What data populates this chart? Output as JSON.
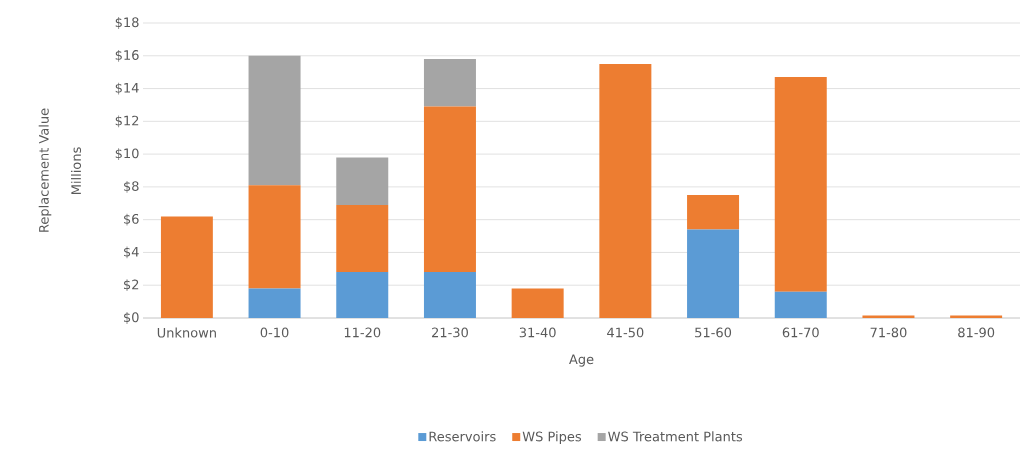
{
  "chart_data": {
    "type": "bar",
    "stacked": true,
    "xlabel": "Age",
    "ylabel": "Replacement Value",
    "annotations": [
      "Millions"
    ],
    "categories": [
      "Unknown",
      "0-10",
      "11-20",
      "21-30",
      "31-40",
      "41-50",
      "51-60",
      "61-70",
      "71-80",
      "81-90"
    ],
    "series": [
      {
        "name": "Reservoirs",
        "color": "#5b9bd5",
        "values": [
          0,
          1.8,
          2.8,
          2.8,
          0,
          0,
          5.4,
          1.6,
          0,
          0
        ]
      },
      {
        "name": "WS Pipes",
        "color": "#ed7d31",
        "values": [
          6.2,
          6.3,
          4.1,
          10.1,
          1.8,
          15.5,
          2.1,
          13.1,
          0.15,
          0.15
        ]
      },
      {
        "name": "WS Treatment Plants",
        "color": "#a5a5a5",
        "values": [
          0,
          7.9,
          2.9,
          2.9,
          0,
          0,
          0,
          0,
          0,
          0
        ]
      }
    ],
    "ylim": [
      0,
      18
    ],
    "yticks": [
      {
        "value": 0,
        "label": "$0"
      },
      {
        "value": 2,
        "label": "$2"
      },
      {
        "value": 4,
        "label": "$4"
      },
      {
        "value": 6,
        "label": "$6"
      },
      {
        "value": 8,
        "label": "$8"
      },
      {
        "value": 10,
        "label": "$10"
      },
      {
        "value": 12,
        "label": "$12"
      },
      {
        "value": 14,
        "label": "$14"
      },
      {
        "value": 16,
        "label": "$16"
      },
      {
        "value": 18,
        "label": "$18"
      }
    ],
    "grid": "y",
    "legend": "bottom"
  }
}
